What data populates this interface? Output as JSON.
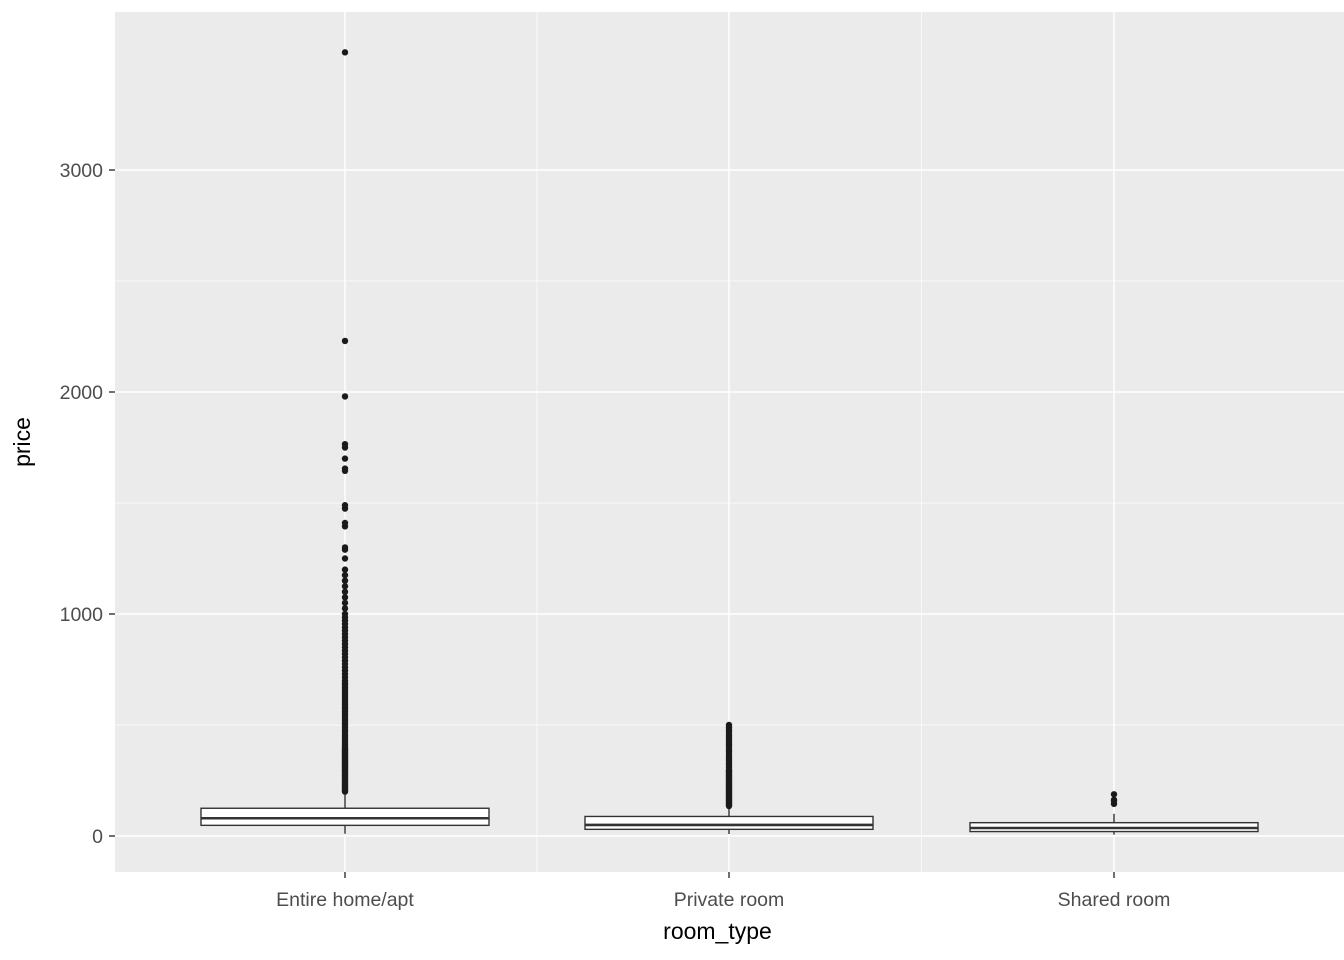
{
  "chart_data": {
    "type": "boxplot",
    "title": "",
    "xlabel": "room_type",
    "ylabel": "price",
    "categories": [
      "Entire home/apt",
      "Private room",
      "Shared room"
    ],
    "y_ticks": [
      0,
      1000,
      2000,
      3000
    ],
    "y_minor_ticks": [
      500,
      1500,
      2500
    ],
    "ylim": [
      -160,
      3715
    ],
    "grid": "on",
    "legend": "none",
    "panel_bg": "#EBEBEB",
    "grid_color": "#FFFFFF",
    "box_fill": "#FFFFFF",
    "box_stroke": "#333333",
    "point_color": "#1A1A1A",
    "tick_label_color": "#4D4D4D",
    "axis_title_color": "#000000",
    "boxes": [
      {
        "category": "Entire home/apt",
        "whisker_low": 10,
        "q1": 48,
        "median": 80,
        "q3": 125,
        "whisker_high": 195,
        "outliers": [
          200,
          205,
          210,
          215,
          220,
          225,
          230,
          235,
          240,
          245,
          250,
          255,
          260,
          265,
          270,
          275,
          280,
          285,
          290,
          295,
          300,
          305,
          310,
          315,
          320,
          325,
          330,
          335,
          340,
          345,
          350,
          355,
          360,
          365,
          370,
          375,
          380,
          385,
          390,
          395,
          400,
          410,
          420,
          430,
          440,
          450,
          460,
          470,
          480,
          490,
          500,
          510,
          520,
          530,
          540,
          550,
          560,
          570,
          580,
          590,
          600,
          610,
          620,
          630,
          640,
          650,
          660,
          670,
          680,
          690,
          700,
          715,
          730,
          745,
          760,
          775,
          790,
          805,
          820,
          835,
          850,
          865,
          880,
          895,
          910,
          925,
          940,
          955,
          970,
          985,
          1000,
          1025,
          1050,
          1075,
          1100,
          1125,
          1150,
          1175,
          1200,
          1250,
          1290,
          1300,
          1395,
          1410,
          1475,
          1490,
          1645,
          1655,
          1700,
          1750,
          1765,
          1980,
          2230,
          3530
        ]
      },
      {
        "category": "Private room",
        "whisker_low": 9,
        "q1": 30,
        "median": 50,
        "q3": 88,
        "whisker_high": 128,
        "outliers": [
          135,
          140,
          145,
          150,
          155,
          160,
          165,
          170,
          175,
          180,
          185,
          190,
          195,
          200,
          205,
          210,
          215,
          220,
          225,
          230,
          235,
          240,
          245,
          250,
          255,
          260,
          265,
          270,
          275,
          280,
          285,
          290,
          295,
          300,
          310,
          320,
          330,
          340,
          350,
          360,
          370,
          380,
          390,
          400,
          410,
          420,
          430,
          440,
          450,
          460,
          470,
          480,
          490,
          500
        ]
      },
      {
        "category": "Shared room",
        "whisker_low": 6,
        "q1": 20,
        "median": 36,
        "q3": 60,
        "whisker_high": 100,
        "outliers": [
          145,
          158,
          163,
          188
        ]
      }
    ]
  }
}
